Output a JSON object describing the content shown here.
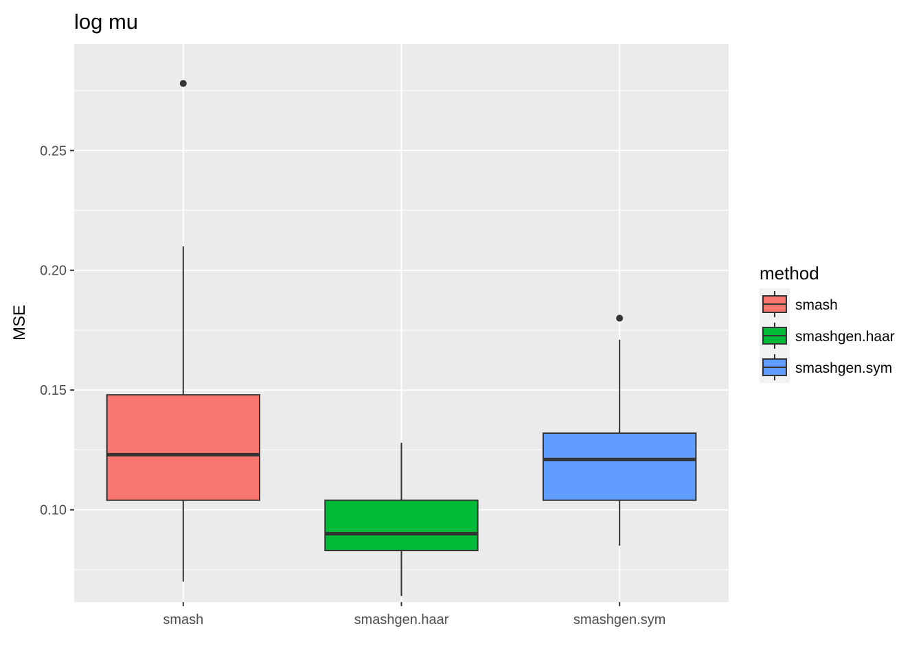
{
  "chart_data": {
    "type": "boxplot",
    "title": "log mu",
    "xlabel": "",
    "ylabel": "MSE",
    "categories": [
      "smash",
      "smashgen.haar",
      "smashgen.sym"
    ],
    "y_ticks": [
      0.1,
      0.15,
      0.2,
      0.25
    ],
    "y_tick_labels": [
      "0.10",
      "0.15",
      "0.20",
      "0.25"
    ],
    "ylim": [
      0.0615,
      0.2945
    ],
    "grid": true,
    "legend": {
      "title": "method",
      "placement": "right",
      "entries": [
        "smash",
        "smashgen.haar",
        "smashgen.sym"
      ]
    },
    "series": [
      {
        "category": "smash",
        "color": "#F8766D",
        "whisker_low": 0.07,
        "q1": 0.104,
        "median": 0.123,
        "q3": 0.148,
        "whisker_high": 0.21,
        "outliers": [
          0.278
        ]
      },
      {
        "category": "smashgen.haar",
        "color": "#00BA38",
        "whisker_low": 0.064,
        "q1": 0.083,
        "median": 0.09,
        "q3": 0.104,
        "whisker_high": 0.128,
        "outliers": []
      },
      {
        "category": "smashgen.sym",
        "color": "#619CFF",
        "whisker_low": 0.085,
        "q1": 0.104,
        "median": 0.121,
        "q3": 0.132,
        "whisker_high": 0.171,
        "outliers": [
          0.18
        ]
      }
    ]
  }
}
